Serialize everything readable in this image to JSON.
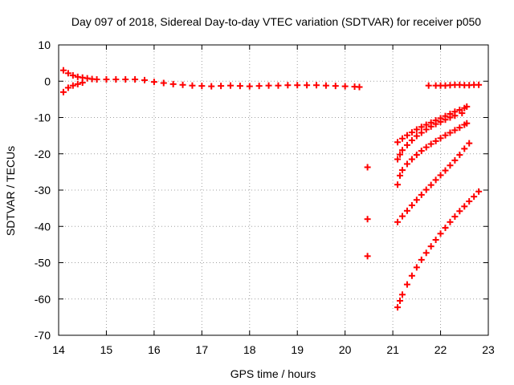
{
  "chart_data": {
    "type": "scatter",
    "title": "Day 097 of 2018, Sidereal Day-to-day VTEC variation (SDTVAR) for receiver p050",
    "xlabel": "GPS time / hours",
    "ylabel": "SDTVAR / TECUs",
    "xlim": [
      14,
      23
    ],
    "ylim": [
      -70,
      10
    ],
    "xticks": [
      14,
      15,
      16,
      17,
      18,
      19,
      20,
      21,
      22,
      23
    ],
    "yticks": [
      10,
      0,
      -10,
      -20,
      -30,
      -40,
      -50,
      -60,
      -70
    ],
    "grid": true,
    "marker": "+",
    "color": "#ff0000",
    "series": [
      {
        "name": "main-band",
        "points": [
          [
            14.1,
            3.0
          ],
          [
            14.1,
            -3.0
          ],
          [
            14.2,
            2.2
          ],
          [
            14.2,
            -1.8
          ],
          [
            14.3,
            1.6
          ],
          [
            14.3,
            -1.2
          ],
          [
            14.4,
            1.2
          ],
          [
            14.4,
            -0.8
          ],
          [
            14.5,
            1.0
          ],
          [
            14.5,
            -0.4
          ],
          [
            14.6,
            0.8
          ],
          [
            14.7,
            0.6
          ],
          [
            14.8,
            0.5
          ],
          [
            15.0,
            0.5
          ],
          [
            15.2,
            0.5
          ],
          [
            15.4,
            0.5
          ],
          [
            15.6,
            0.5
          ],
          [
            15.8,
            0.3
          ],
          [
            16.0,
            -0.2
          ],
          [
            16.2,
            -0.5
          ],
          [
            16.4,
            -0.8
          ],
          [
            16.6,
            -1.0
          ],
          [
            16.8,
            -1.2
          ],
          [
            17.0,
            -1.3
          ],
          [
            17.2,
            -1.4
          ],
          [
            17.4,
            -1.3
          ],
          [
            17.6,
            -1.2
          ],
          [
            17.8,
            -1.3
          ],
          [
            18.0,
            -1.4
          ],
          [
            18.2,
            -1.3
          ],
          [
            18.4,
            -1.2
          ],
          [
            18.6,
            -1.2
          ],
          [
            18.8,
            -1.1
          ],
          [
            19.0,
            -1.1
          ],
          [
            19.2,
            -1.1
          ],
          [
            19.4,
            -1.1
          ],
          [
            19.6,
            -1.2
          ],
          [
            19.8,
            -1.3
          ],
          [
            20.0,
            -1.4
          ],
          [
            20.2,
            -1.5
          ],
          [
            20.3,
            -1.6
          ]
        ]
      },
      {
        "name": "late-band",
        "points": [
          [
            21.75,
            -1.2
          ],
          [
            21.9,
            -1.2
          ],
          [
            22.0,
            -1.2
          ],
          [
            22.1,
            -1.2
          ],
          [
            22.2,
            -1.1
          ],
          [
            22.3,
            -1.0
          ],
          [
            22.4,
            -1.0
          ],
          [
            22.5,
            -1.1
          ],
          [
            22.6,
            -1.1
          ],
          [
            22.7,
            -1.0
          ],
          [
            22.8,
            -1.0
          ]
        ]
      },
      {
        "name": "isolated",
        "points": [
          [
            20.47,
            -23.7
          ],
          [
            20.47,
            -38.0
          ],
          [
            20.47,
            -48.2
          ]
        ]
      },
      {
        "name": "arc-1",
        "points": [
          [
            21.1,
            -16.8
          ],
          [
            21.2,
            -15.8
          ],
          [
            21.3,
            -14.9
          ],
          [
            21.4,
            -14.1
          ],
          [
            21.5,
            -13.3
          ],
          [
            21.6,
            -12.6
          ],
          [
            21.7,
            -12.0
          ],
          [
            21.8,
            -11.4
          ],
          [
            21.9,
            -10.8
          ],
          [
            22.0,
            -10.2
          ],
          [
            22.1,
            -9.6
          ],
          [
            22.2,
            -9.0
          ],
          [
            22.3,
            -8.4
          ],
          [
            22.4,
            -7.9
          ],
          [
            22.5,
            -7.4
          ],
          [
            22.55,
            -7.0
          ]
        ]
      },
      {
        "name": "arc-2",
        "points": [
          [
            21.1,
            -21.5
          ],
          [
            21.15,
            -20.2
          ],
          [
            21.2,
            -19.0
          ],
          [
            21.3,
            -17.6
          ],
          [
            21.4,
            -16.3
          ],
          [
            21.5,
            -15.1
          ],
          [
            21.6,
            -14.2
          ],
          [
            21.7,
            -13.3
          ],
          [
            21.8,
            -12.5
          ],
          [
            21.9,
            -11.8
          ],
          [
            22.0,
            -11.2
          ],
          [
            22.1,
            -10.6
          ],
          [
            22.2,
            -10.0
          ],
          [
            22.3,
            -9.5
          ],
          [
            22.45,
            -8.8
          ]
        ]
      },
      {
        "name": "arc-3",
        "points": [
          [
            21.1,
            -28.5
          ],
          [
            21.15,
            -26.0
          ],
          [
            21.2,
            -24.5
          ],
          [
            21.3,
            -22.8
          ],
          [
            21.4,
            -21.5
          ],
          [
            21.5,
            -20.3
          ],
          [
            21.6,
            -19.2
          ],
          [
            21.7,
            -18.2
          ],
          [
            21.8,
            -17.3
          ],
          [
            21.9,
            -16.5
          ],
          [
            22.0,
            -15.7
          ],
          [
            22.1,
            -14.9
          ],
          [
            22.2,
            -14.2
          ],
          [
            22.3,
            -13.5
          ],
          [
            22.4,
            -12.8
          ],
          [
            22.5,
            -12.0
          ],
          [
            22.55,
            -11.6
          ]
        ]
      },
      {
        "name": "arc-4",
        "points": [
          [
            21.1,
            -38.8
          ],
          [
            21.2,
            -37.2
          ],
          [
            21.3,
            -35.7
          ],
          [
            21.4,
            -34.2
          ],
          [
            21.5,
            -32.7
          ],
          [
            21.6,
            -31.3
          ],
          [
            21.7,
            -29.9
          ],
          [
            21.8,
            -28.6
          ],
          [
            21.9,
            -27.2
          ],
          [
            22.0,
            -25.9
          ],
          [
            22.1,
            -24.6
          ],
          [
            22.2,
            -23.2
          ],
          [
            22.3,
            -21.8
          ],
          [
            22.4,
            -20.3
          ],
          [
            22.5,
            -18.6
          ],
          [
            22.6,
            -17.1
          ]
        ]
      },
      {
        "name": "arc-5",
        "points": [
          [
            21.1,
            -62.3
          ],
          [
            21.15,
            -60.5
          ],
          [
            21.2,
            -58.8
          ],
          [
            21.3,
            -56.0
          ],
          [
            21.4,
            -53.6
          ],
          [
            21.5,
            -51.3
          ],
          [
            21.6,
            -49.2
          ],
          [
            21.7,
            -47.3
          ],
          [
            21.8,
            -45.5
          ],
          [
            21.9,
            -43.7
          ],
          [
            22.0,
            -42.0
          ],
          [
            22.1,
            -40.4
          ],
          [
            22.2,
            -38.8
          ],
          [
            22.3,
            -37.3
          ],
          [
            22.4,
            -35.8
          ],
          [
            22.5,
            -34.5
          ],
          [
            22.6,
            -33.1
          ],
          [
            22.7,
            -31.8
          ],
          [
            22.8,
            -30.4
          ]
        ]
      }
    ]
  }
}
